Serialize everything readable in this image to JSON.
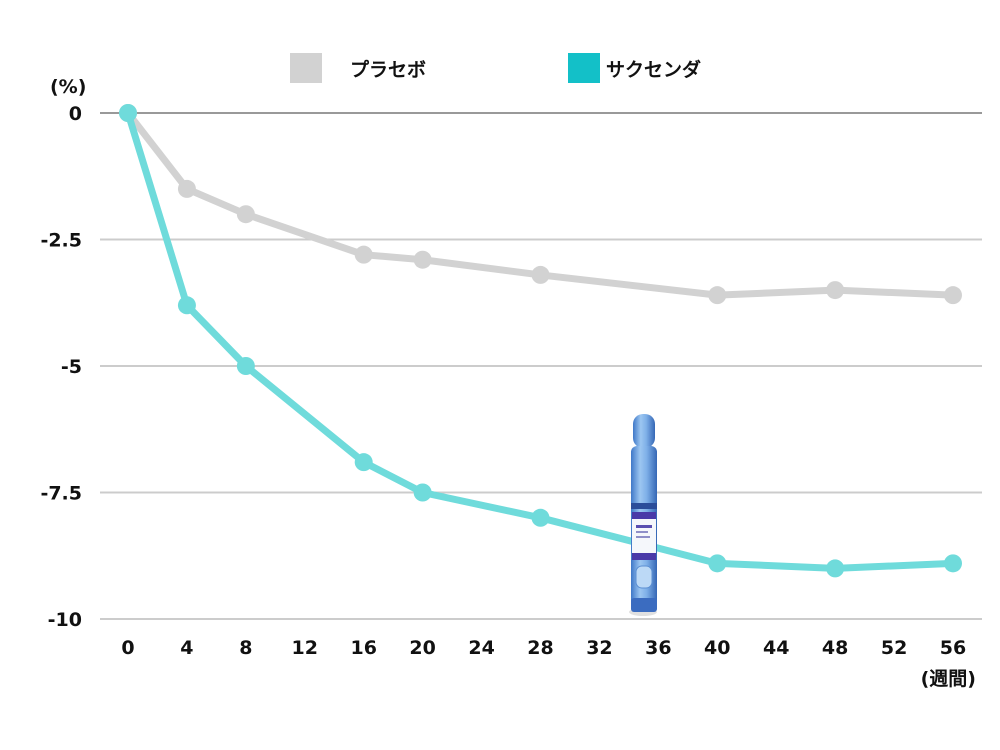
{
  "chart_data": {
    "type": "line",
    "y_unit": "(%)",
    "x_unit": "(週間)",
    "x_ticks": [
      0,
      4,
      8,
      12,
      16,
      20,
      24,
      28,
      32,
      36,
      40,
      44,
      48,
      52,
      56
    ],
    "y_ticks": [
      0,
      -2.5,
      -5,
      -7.5,
      -10
    ],
    "y_tick_labels": [
      "0",
      "-2.5",
      "-5",
      "-7.5",
      "-10"
    ],
    "xlim": [
      0,
      56
    ],
    "ylim": [
      -10,
      0
    ],
    "grid": true,
    "legend_position": "top-center",
    "series": [
      {
        "name": "プラセボ",
        "color": "#d2d2d2",
        "x": [
          0,
          4,
          8,
          16,
          20,
          28,
          40,
          48,
          56
        ],
        "values": [
          0,
          -1.5,
          -2.0,
          -2.8,
          -2.9,
          -3.2,
          -3.6,
          -3.5,
          -3.6
        ]
      },
      {
        "name": "サクセンダ",
        "color": "#6fdbdb",
        "x": [
          0,
          4,
          8,
          16,
          20,
          28,
          40,
          48,
          56
        ],
        "values": [
          0,
          -3.8,
          -5.0,
          -6.9,
          -7.5,
          -8.0,
          -8.9,
          -9.0,
          -8.9
        ]
      }
    ],
    "legend_swatch_colors": [
      "#d2d2d2",
      "#13c0c8"
    ],
    "axis_line_color": "#999999",
    "grid_color": "#cccccc",
    "illustration": "injection-pen-icon"
  }
}
